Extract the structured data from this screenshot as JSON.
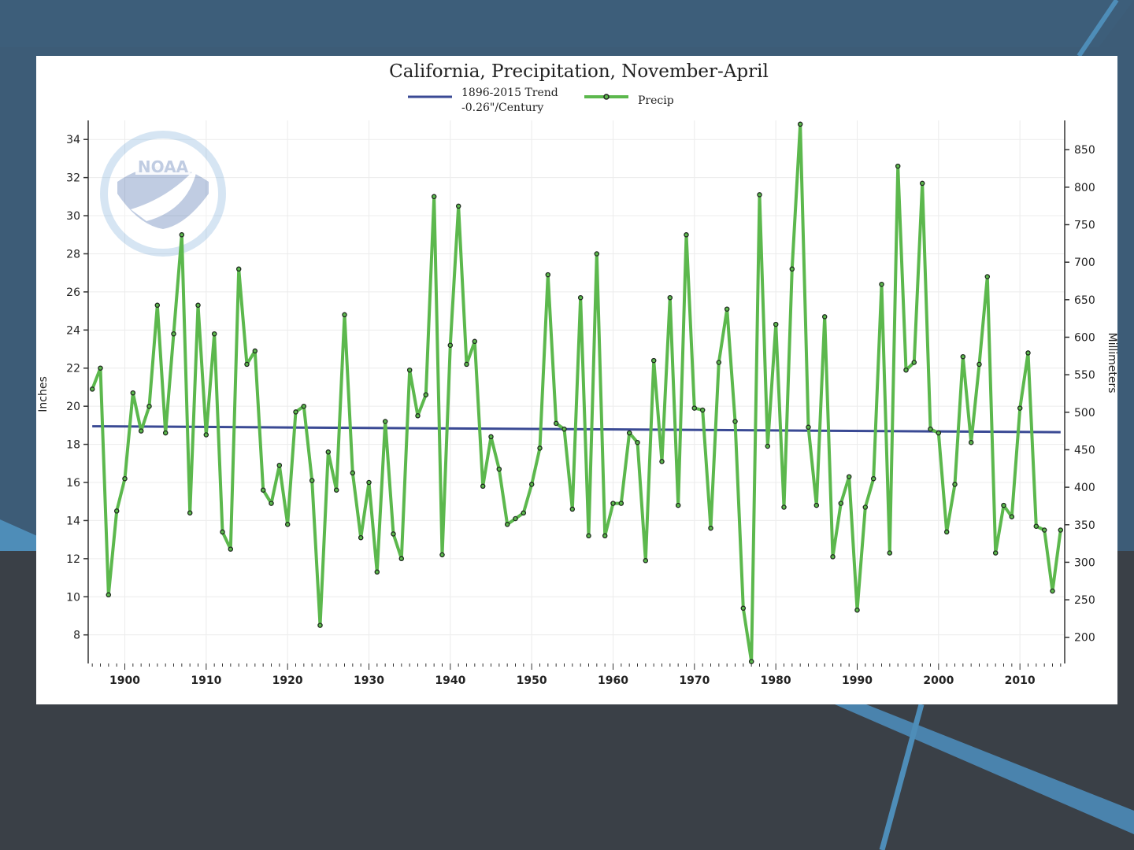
{
  "chart_data": {
    "type": "line",
    "title": "California, Precipitation, November-April",
    "ylabel": "Inches",
    "ylabel_right": "Millimeters",
    "legend": [
      {
        "name": "1896-2015 Trend",
        "subtitle": "-0.26\"/Century",
        "color": "#3a4a94"
      },
      {
        "name": "Precip",
        "color": "#5cb84d"
      }
    ],
    "legend_position": "top-center",
    "xlim": [
      1895.5,
      2015.5
    ],
    "ylim": [
      6.5,
      35
    ],
    "x_ticks": [
      1900,
      1910,
      1920,
      1930,
      1940,
      1950,
      1960,
      1970,
      1980,
      1990,
      2000,
      2010
    ],
    "y_ticks_left": [
      8,
      10,
      12,
      14,
      16,
      18,
      20,
      22,
      24,
      26,
      28,
      30,
      32,
      34
    ],
    "y_ticks_right_mm": [
      200,
      250,
      300,
      350,
      400,
      450,
      500,
      550,
      600,
      650,
      700,
      750,
      800,
      850
    ],
    "grid": true,
    "series": [
      {
        "name": "Precip",
        "color": "#5cb84d",
        "x_start": 1896,
        "values": [
          20.9,
          22.0,
          10.1,
          14.5,
          16.2,
          20.7,
          18.7,
          20.0,
          25.3,
          18.6,
          23.8,
          29.0,
          14.4,
          25.3,
          18.5,
          23.8,
          13.4,
          12.5,
          27.2,
          22.2,
          22.9,
          15.6,
          14.9,
          16.9,
          13.8,
          19.7,
          20.0,
          16.1,
          8.5,
          17.6,
          15.6,
          24.8,
          16.5,
          13.1,
          16.0,
          11.3,
          19.2,
          13.3,
          12.0,
          21.9,
          19.5,
          20.6,
          31.0,
          12.2,
          23.2,
          30.5,
          22.2,
          23.4,
          15.8,
          18.4,
          16.7,
          13.8,
          14.1,
          14.4,
          15.9,
          17.8,
          26.9,
          19.1,
          18.8,
          14.6,
          25.7,
          13.2,
          28.0,
          13.2,
          14.9,
          14.9,
          18.6,
          18.1,
          11.9,
          22.4,
          17.1,
          25.7,
          14.8,
          29.0,
          19.9,
          19.8,
          13.6,
          22.3,
          25.1,
          19.2,
          9.4,
          6.6,
          31.1,
          17.9,
          24.3,
          14.7,
          27.2,
          34.8,
          18.9,
          14.8,
          24.7,
          12.1,
          14.9,
          16.3,
          9.3,
          14.7,
          16.2,
          26.4,
          12.3,
          32.6,
          21.9,
          22.3,
          31.7,
          18.8,
          18.6,
          13.4,
          15.9,
          22.6,
          18.1,
          22.2,
          26.8,
          12.3,
          14.8,
          14.2,
          19.9,
          22.8,
          13.7,
          13.5,
          10.3,
          13.5
        ]
      },
      {
        "name": "1896-2015 Trend",
        "color": "#3a4a94",
        "x": [
          1896,
          2015
        ],
        "values": [
          18.95,
          18.64
        ]
      }
    ]
  }
}
